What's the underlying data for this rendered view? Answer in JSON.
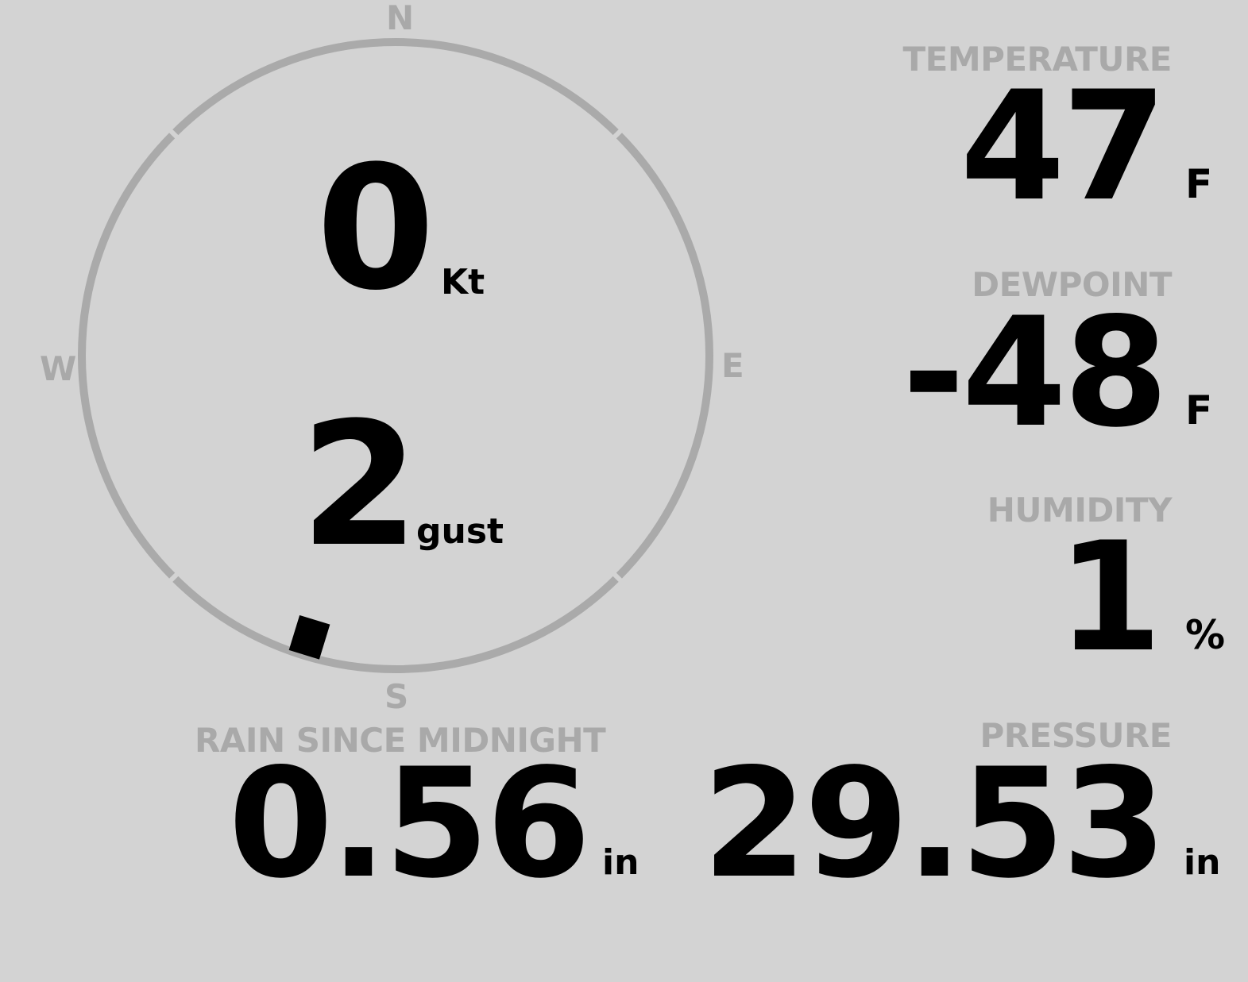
{
  "wind": {
    "speed": "0",
    "speed_unit": "Kt",
    "gust": "2",
    "gust_unit": "gust",
    "direction_deg": 197,
    "compass": {
      "n": "N",
      "e": "E",
      "s": "S",
      "w": "W"
    }
  },
  "temperature": {
    "label": "TEMPERATURE",
    "value": "47",
    "unit": "F"
  },
  "dewpoint": {
    "label": "DEWPOINT",
    "value": "-48",
    "unit": "F"
  },
  "humidity": {
    "label": "HUMIDITY",
    "value": "1",
    "unit": "%"
  },
  "pressure": {
    "label": "PRESSURE",
    "value": "29.53",
    "unit": "in"
  },
  "rain": {
    "label": "RAIN SINCE MIDNIGHT",
    "value": "0.56",
    "unit": "in"
  },
  "colors": {
    "background": "#d3d3d3",
    "label": "#a9a9a9",
    "value": "#000000",
    "ring": "#aaaaaa"
  }
}
